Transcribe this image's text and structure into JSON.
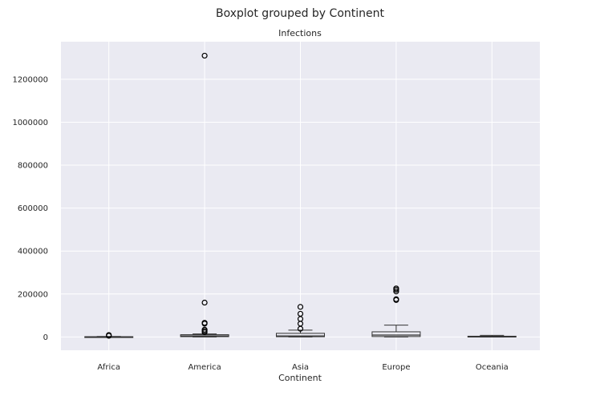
{
  "chart_data": {
    "type": "box",
    "title": "Boxplot grouped by Continent",
    "subtitle": "Infections",
    "xlabel": "Continent",
    "ylabel": "",
    "categories": [
      "Africa",
      "America",
      "Asia",
      "Europe",
      "Oceania"
    ],
    "ylim": [
      -62000,
      1375000
    ],
    "yticks": [
      0,
      200000,
      400000,
      600000,
      800000,
      1000000,
      1200000
    ],
    "ytick_labels": [
      "0",
      "200000",
      "400000",
      "600000",
      "800000",
      "1000000",
      "1200000"
    ],
    "grid": true,
    "boxes": [
      {
        "category": "Africa",
        "whislo": 0,
        "q1": 200,
        "med": 500,
        "q3": 1200,
        "whishi": 2500,
        "fliers": [
          5500,
          9000
        ]
      },
      {
        "category": "America",
        "whislo": 0,
        "q1": 1500,
        "med": 5000,
        "q3": 10500,
        "whishi": 14000,
        "fliers": [
          22000,
          28000,
          34000,
          62000,
          66000,
          160000,
          1310000
        ]
      },
      {
        "category": "Asia",
        "whislo": 0,
        "q1": 1200,
        "med": 5000,
        "q3": 17000,
        "whishi": 32000,
        "fliers": [
          38000,
          62000,
          84000,
          108000,
          140000
        ]
      },
      {
        "category": "Europe",
        "whislo": 0,
        "q1": 2000,
        "med": 9000,
        "q3": 24000,
        "whishi": 55000,
        "fliers": [
          172000,
          176000,
          212000,
          220000,
          226000
        ]
      },
      {
        "category": "Oceania",
        "whislo": 200,
        "q1": 600,
        "med": 1500,
        "q3": 3500,
        "whishi": 7500,
        "fliers": []
      }
    ]
  }
}
